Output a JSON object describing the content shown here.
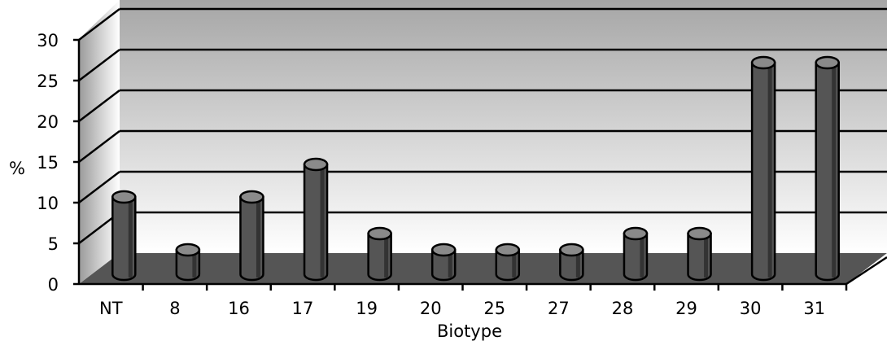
{
  "chart_data": {
    "type": "bar",
    "style": "3d-cylinder",
    "xlabel": "Biotype",
    "ylabel": "%",
    "categories": [
      "NT",
      "8",
      "16",
      "17",
      "19",
      "20",
      "25",
      "27",
      "28",
      "29",
      "30",
      "31"
    ],
    "values": [
      9.5,
      3,
      9.5,
      13.5,
      5,
      3,
      3,
      3,
      5,
      5,
      26,
      26
    ],
    "ylim": [
      0,
      30
    ],
    "yticks": [
      "0",
      "5",
      "10",
      "15",
      "20",
      "25",
      "30"
    ],
    "grid": true,
    "legend": "none",
    "colors": {
      "bar_front": "#555555",
      "bar_side": "#333333",
      "bar_top": "#8a8a8a",
      "floor": "#555555",
      "wall_top": "#a6a6a6",
      "wall_bottom": "#ffffff",
      "gridline": "#000000"
    }
  }
}
